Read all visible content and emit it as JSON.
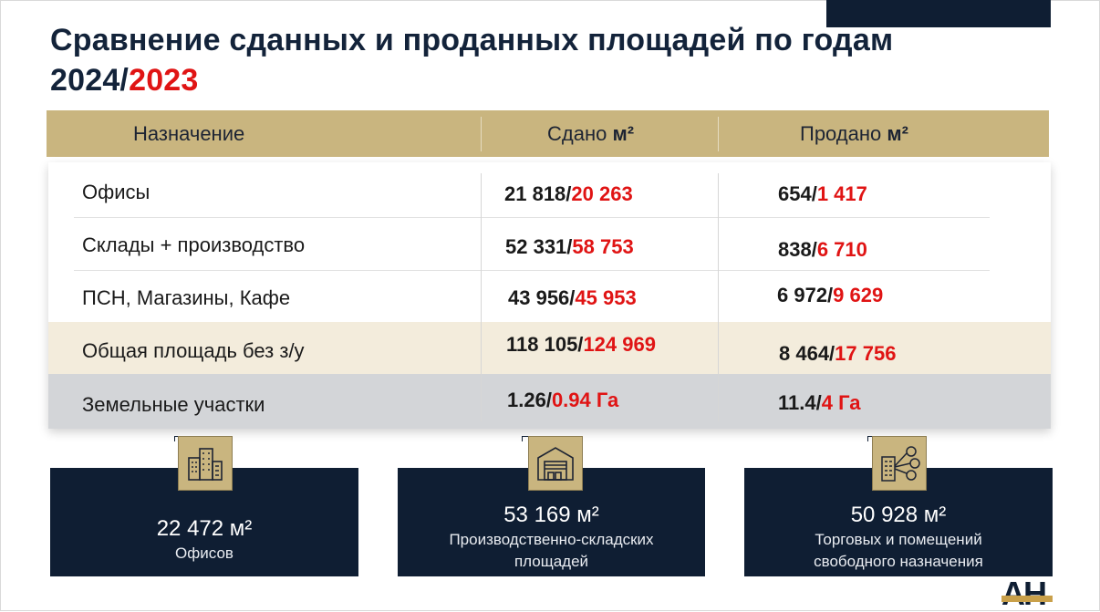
{
  "title": {
    "line1": "Сравнение сданных и проданных площадей по годам",
    "year_a": "2024/",
    "year_b": "2023"
  },
  "table": {
    "headers": {
      "purpose": "Назначение",
      "leased": "Сдано",
      "sold": "Продано",
      "unit": "м²"
    },
    "rows": [
      {
        "name": "Офисы",
        "leased_2024": "21 818/",
        "leased_2023": "20 263",
        "sold_2024": "654/",
        "sold_2023": "1 417"
      },
      {
        "name": "Склады + производство",
        "leased_2024": "52 331/",
        "leased_2023": "58 753",
        "sold_2024": "838/",
        "sold_2023": "6 710"
      },
      {
        "name": "ПСН, Магазины, Кафе",
        "leased_2024": "43 956/",
        "leased_2023": "45 953",
        "sold_2024": "6 972/",
        "sold_2023": "9 629"
      },
      {
        "name": "Общая площадь без з/у",
        "leased_2024": "118 105/",
        "leased_2023": "124 969",
        "sold_2024": "8 464/",
        "sold_2023": "17 756"
      },
      {
        "name": "Земельные участки",
        "leased_2024": "1.26/",
        "leased_2023": "0.94 Га",
        "sold_2024": "11.4/",
        "sold_2023": "4 Га"
      }
    ]
  },
  "cards": [
    {
      "value": "22 472 м²",
      "label": "Офисов",
      "icon": "office-buildings-icon"
    },
    {
      "value": "53 169 м²",
      "label_line1": "Производственно-складских",
      "label_line2": "площадей",
      "icon": "warehouse-icon"
    },
    {
      "value": "50 928 м²",
      "label_line1": "Торговых и помещений",
      "label_line2": "свободного назначения",
      "icon": "retail-people-icon"
    }
  ],
  "logo": {
    "text": "АН"
  },
  "colors": {
    "navy": "#0f1e33",
    "gold": "#c9b57f",
    "red": "#e01414",
    "total_bg": "#f3ecdc",
    "land_bg": "#d3d5d8"
  }
}
